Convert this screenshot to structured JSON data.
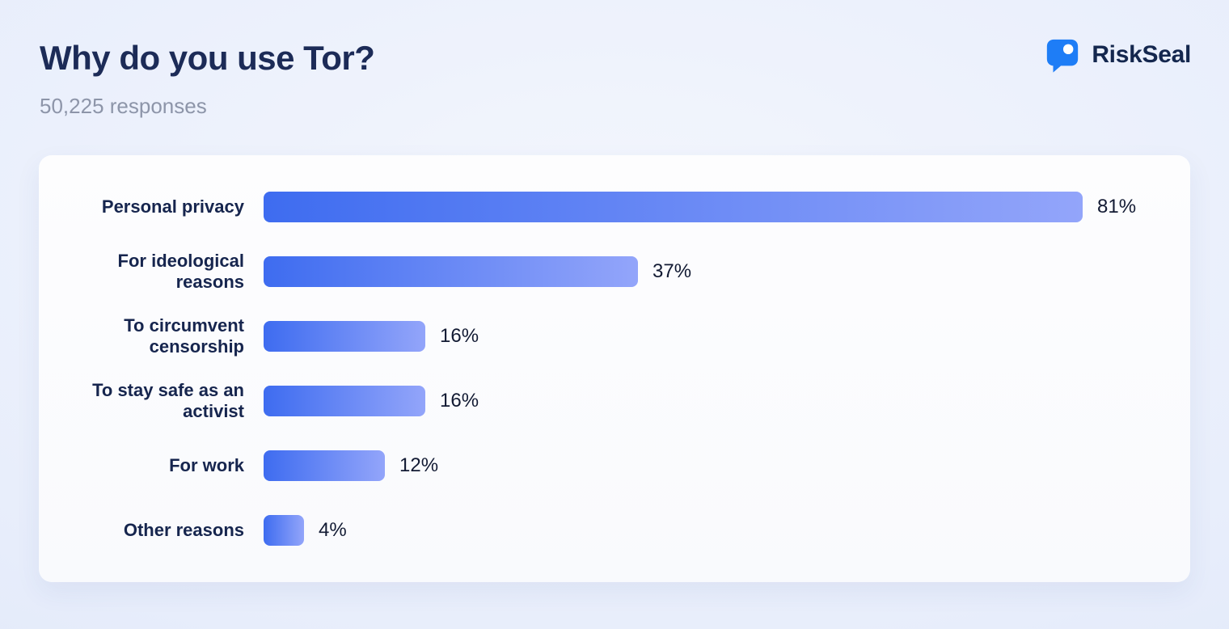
{
  "header": {
    "title": "Why do you use Tor?",
    "subtitle": "50,225 responses",
    "brand": "RiskSeal"
  },
  "colors": {
    "title_text": "#1c2b57",
    "subtitle_text": "#8d95a9",
    "category_text": "#16254e",
    "value_text": "#121a33",
    "bar_gradient_start": "#3e6cf0",
    "bar_gradient_end": "#93a5fa",
    "brand_blue": "#1e7df6",
    "card_background": "#fcfdfe",
    "page_background": "#e3eafa"
  },
  "chart_data": {
    "type": "bar",
    "orientation": "horizontal",
    "title": "Why do you use Tor?",
    "subtitle": "50,225 responses",
    "categories": [
      "Personal privacy",
      "For ideological reasons",
      "To circumvent censorship",
      "To stay safe as an activist",
      "For work",
      "Other reasons"
    ],
    "values": [
      81,
      37,
      16,
      16,
      12,
      4
    ],
    "value_labels": [
      "81%",
      "37%",
      "16%",
      "16%",
      "12%",
      "4%"
    ],
    "xlabel": "",
    "ylabel": "",
    "xlim": [
      0,
      100
    ],
    "grid": false,
    "legend": false,
    "data_labels_position": "right-of-bar"
  }
}
